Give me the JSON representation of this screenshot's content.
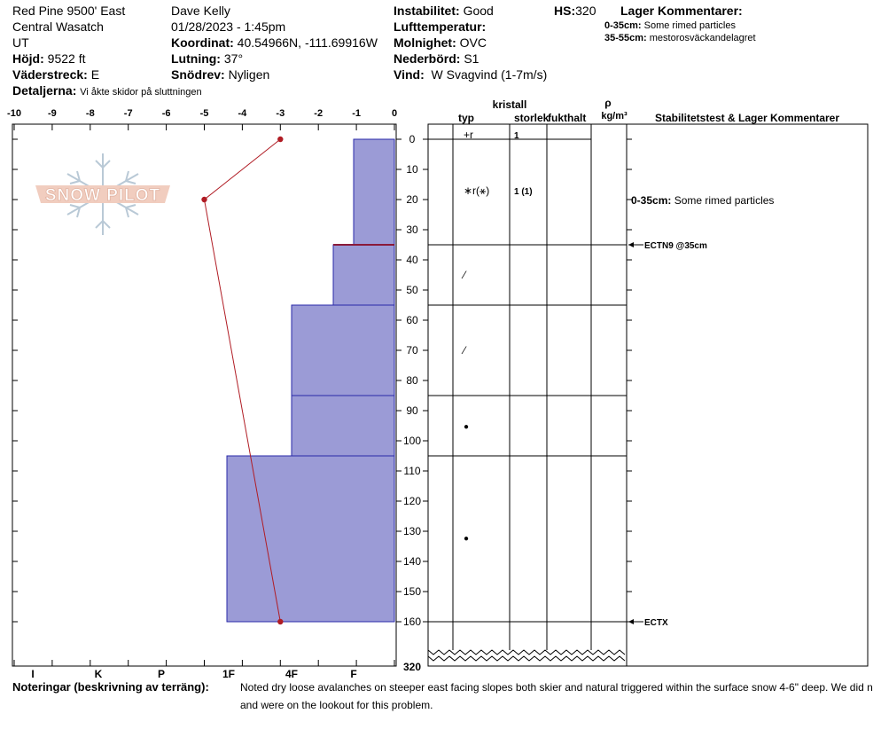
{
  "header": {
    "location_name": "Red Pine 9500' East",
    "region": "Central Wasatch",
    "state": "UT",
    "elevation_label": "Höjd:",
    "elevation_value": "9522 ft",
    "aspect_label": "Väderstreck:",
    "aspect_value": "E",
    "details_label": "Detaljerna:",
    "details_value": "Vi åkte skidor på sluttningen",
    "observer": "Dave Kelly",
    "datetime": "01/28/2023 - 1:45pm",
    "coord_label": "Koordinat:",
    "coord_value": "40.54966N, -111.69916W",
    "slope_label": "Lutning:",
    "slope_value": "37°",
    "wind_loading_label": "Snödrev:",
    "wind_loading_value": "Nyligen",
    "stability_label": "Instabilitet:",
    "stability_value": "Good",
    "air_temp_label": "Lufttemperatur:",
    "air_temp_value": "",
    "sky_label": "Molnighet:",
    "sky_value": "OVC",
    "precip_label": "Nederbörd:",
    "precip_value": "S1",
    "wind_label": "Vind:",
    "wind_value": "W Svagvind (1-7m/s)",
    "hs_label": "HS:",
    "hs_value": "320",
    "layer_comments_title": "Lager Kommentarer:",
    "layer_comments": [
      {
        "range": "0-35cm:",
        "text": "Some rimed particles"
      },
      {
        "range": "35-55cm:",
        "text": "mestorosväckandelagret"
      }
    ]
  },
  "columns": {
    "crystal": "kristall",
    "type": "typ",
    "size": "storlek",
    "moisture": "fukthalt",
    "rho": "ρ",
    "density_unit": "kg/m³",
    "stability_comments": "Stabilitetstest & Lager Kommentarer"
  },
  "footer": {
    "notes_label": "Noteringar (beskrivning av terräng):",
    "notes_line1": "Noted dry loose avalanches on steeper east facing slopes both skier and natural triggered within the surface snow 4-6\" deep. We did n",
    "notes_line2": "and were on the lookout for this problem."
  },
  "logo": {
    "text": "SNOW PILOT"
  },
  "colors": {
    "layer_fill": "#9b9bd6",
    "layer_edge": "#2a2aa8",
    "temp_line": "#b01c24"
  },
  "chart_data": {
    "type": "snow-profile",
    "temp_axis": {
      "ticks": [
        "-10",
        "-9",
        "-8",
        "-7",
        "-6",
        "-5",
        "-4",
        "-3",
        "-2",
        "-1",
        "0"
      ],
      "min": -10,
      "max": 0
    },
    "depth_axis": {
      "ticks": [
        "0",
        "10",
        "20",
        "30",
        "40",
        "50",
        "60",
        "70",
        "80",
        "90",
        "100",
        "110",
        "120",
        "130",
        "140",
        "150",
        "160"
      ],
      "min": 0,
      "max": 160,
      "bottom_label": "320"
    },
    "hardness_axis": {
      "ticks": [
        "I",
        "K",
        "P",
        "1F",
        "4F",
        "F"
      ]
    },
    "layers": [
      {
        "top": 0,
        "bottom": 35,
        "hardness": "F"
      },
      {
        "top": 35,
        "bottom": 55,
        "hardness": "F+"
      },
      {
        "top": 55,
        "bottom": 85,
        "hardness": "4F"
      },
      {
        "top": 85,
        "bottom": 105,
        "hardness": "4F"
      },
      {
        "top": 105,
        "bottom": 160,
        "hardness": "1F+"
      }
    ],
    "temperature_profile": [
      {
        "depth": 0,
        "temp": -3
      },
      {
        "depth": 20,
        "temp": -5
      },
      {
        "depth": 160,
        "temp": -3
      }
    ],
    "crystal_rows": [
      {
        "depth": 0,
        "type": "+r",
        "size": "1"
      },
      {
        "depth": 17,
        "type": "∗r(⚹)",
        "size": "1 (1)"
      },
      {
        "depth": 45,
        "type": "⁄",
        "size": ""
      },
      {
        "depth": 70,
        "type": "⁄",
        "size": ""
      },
      {
        "depth": 95,
        "type": "●",
        "size": ""
      },
      {
        "depth": 132,
        "type": "●",
        "size": ""
      }
    ],
    "annotations": [
      {
        "depth": 20,
        "range": "0-35cm:",
        "text": "Some rimed particles"
      },
      {
        "depth": 35,
        "text": "ECTN9 @35cm"
      },
      {
        "depth": 160,
        "text": "ECTX"
      }
    ]
  }
}
